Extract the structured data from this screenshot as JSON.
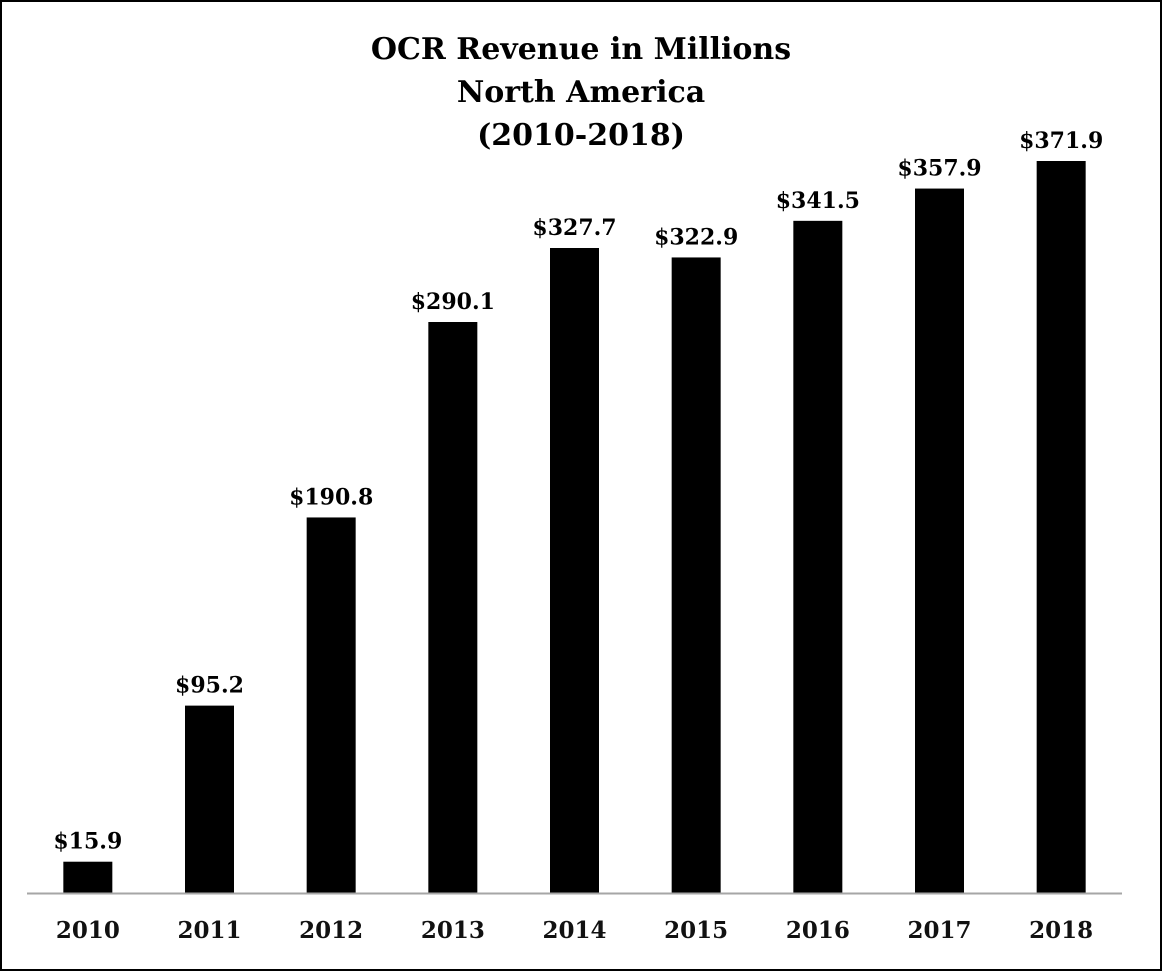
{
  "chart_data": {
    "type": "bar",
    "title": [
      "OCR Revenue in Millions",
      "North America",
      "(2010-2018)"
    ],
    "xlabel": "",
    "ylabel": "",
    "categories": [
      "2010",
      "2011",
      "2012",
      "2013",
      "2014",
      "2015",
      "2016",
      "2017",
      "2018"
    ],
    "values": [
      15.9,
      95.2,
      190.8,
      290.1,
      327.7,
      322.9,
      341.5,
      357.9,
      371.9
    ],
    "data_labels": [
      "$15.9",
      "$95.2",
      "$190.8",
      "$290.1",
      "$327.7",
      "$322.9",
      "$341.5",
      "$357.9",
      "$371.9"
    ],
    "ylim": [
      0,
      372
    ],
    "grid": false,
    "legend": "none",
    "bar_color": "#000000",
    "axis_color": "#a6a6a6"
  }
}
